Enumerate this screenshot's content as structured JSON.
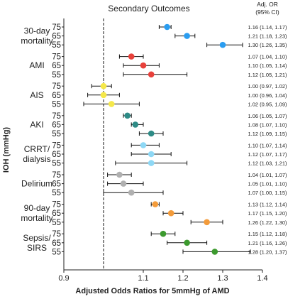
{
  "chart_data": {
    "type": "scatter",
    "subtype": "forest-plot",
    "title": "Secondary Outcomes",
    "xlabel": "Adjusted Odds Ratios for 5mmHg of AMD",
    "ylabel": "IOH (mmHg)",
    "xlim": [
      0.9,
      1.4
    ],
    "xticks": [
      0.9,
      1.1,
      1.2,
      1.3,
      1.4
    ],
    "xtick_labels": [
      "0.9",
      "1.1",
      "1.2",
      "1.3",
      "1.4"
    ],
    "reference_line": 1.0,
    "levels": [
      "75",
      "65",
      "55"
    ],
    "or_header": [
      "Adj. OR",
      "(95% CI)"
    ],
    "groups": [
      {
        "label": [
          "30-day",
          "mortality"
        ],
        "color": "#2b9df0",
        "rows": [
          {
            "level": "75",
            "or": 1.16,
            "lo": 1.14,
            "hi": 1.17,
            "text": "1.16 (1.14, 1.17)"
          },
          {
            "level": "65",
            "or": 1.21,
            "lo": 1.18,
            "hi": 1.23,
            "text": "1.21 (1.18, 1.23)"
          },
          {
            "level": "55",
            "or": 1.3,
            "lo": 1.26,
            "hi": 1.35,
            "text": "1.30 (1.26, 1.35)"
          }
        ]
      },
      {
        "label": [
          "AMI"
        ],
        "color": "#e8413b",
        "rows": [
          {
            "level": "75",
            "or": 1.07,
            "lo": 1.04,
            "hi": 1.1,
            "text": "1.07 (1.04, 1.10)"
          },
          {
            "level": "65",
            "or": 1.1,
            "lo": 1.05,
            "hi": 1.14,
            "text": "1.10 (1.05, 1.14)"
          },
          {
            "level": "55",
            "or": 1.12,
            "lo": 1.05,
            "hi": 1.21,
            "text": "1.12 (1.05, 1.21)"
          }
        ]
      },
      {
        "label": [
          "AIS"
        ],
        "color": "#f5e84a",
        "rows": [
          {
            "level": "75",
            "or": 1.0,
            "lo": 0.97,
            "hi": 1.02,
            "text": "1.00 (0.97, 1.02)"
          },
          {
            "level": "65",
            "or": 1.0,
            "lo": 0.96,
            "hi": 1.04,
            "text": "1.00 (0.96, 1.04)"
          },
          {
            "level": "55",
            "or": 1.02,
            "lo": 0.95,
            "hi": 1.09,
            "text": "1.02 (0.95, 1.09)"
          }
        ]
      },
      {
        "label": [
          "AKI"
        ],
        "color": "#2e8b86",
        "rows": [
          {
            "level": "75",
            "or": 1.06,
            "lo": 1.05,
            "hi": 1.07,
            "text": "1.06 (1.05, 1.07)"
          },
          {
            "level": "65",
            "or": 1.08,
            "lo": 1.07,
            "hi": 1.1,
            "text": "1.08 (1.07, 1.10)"
          },
          {
            "level": "55",
            "or": 1.12,
            "lo": 1.09,
            "hi": 1.15,
            "text": "1.12 (1.09, 1.15)"
          }
        ]
      },
      {
        "label": [
          "CRRT/",
          "dialysis"
        ],
        "color": "#8ed8f5",
        "rows": [
          {
            "level": "75",
            "or": 1.1,
            "lo": 1.07,
            "hi": 1.14,
            "text": "1.10 (1.07, 1.14)"
          },
          {
            "level": "65",
            "or": 1.12,
            "lo": 1.07,
            "hi": 1.17,
            "text": "1.12 (1.07, 1.17)"
          },
          {
            "level": "55",
            "or": 1.12,
            "lo": 1.03,
            "hi": 1.21,
            "text": "1.12 (1.03, 1.21)"
          }
        ]
      },
      {
        "label": [
          "Delirium"
        ],
        "color": "#b0b0b0",
        "rows": [
          {
            "level": "75",
            "or": 1.04,
            "lo": 1.01,
            "hi": 1.07,
            "text": "1.04 (1.01, 1.07)"
          },
          {
            "level": "65",
            "or": 1.05,
            "lo": 1.01,
            "hi": 1.1,
            "text": "1.05 (1.01, 1.10)"
          },
          {
            "level": "55",
            "or": 1.07,
            "lo": 1.0,
            "hi": 1.15,
            "text": "1.07 (1.00, 1.15)"
          }
        ]
      },
      {
        "label": [
          "90-day",
          "mortality"
        ],
        "color": "#f39b3a",
        "rows": [
          {
            "level": "75",
            "or": 1.13,
            "lo": 1.12,
            "hi": 1.14,
            "text": "1.13 (1.12, 1.14)"
          },
          {
            "level": "65",
            "or": 1.17,
            "lo": 1.15,
            "hi": 1.2,
            "text": "1.17 (1.15, 1.20)"
          },
          {
            "level": "55",
            "or": 1.26,
            "lo": 1.22,
            "hi": 1.3,
            "text": "1.26 (1.22, 1.30)"
          }
        ]
      },
      {
        "label": [
          "Sepsis/",
          "SIRS"
        ],
        "color": "#3c9a2e",
        "rows": [
          {
            "level": "75",
            "or": 1.15,
            "lo": 1.12,
            "hi": 1.18,
            "text": "1.15 (1.12, 1.18)"
          },
          {
            "level": "65",
            "or": 1.21,
            "lo": 1.16,
            "hi": 1.26,
            "text": "1.21 (1.16, 1.26)"
          },
          {
            "level": "55",
            "or": 1.28,
            "lo": 1.2,
            "hi": 1.37,
            "text": "1.28 (1.20, 1.37)"
          }
        ]
      }
    ]
  }
}
